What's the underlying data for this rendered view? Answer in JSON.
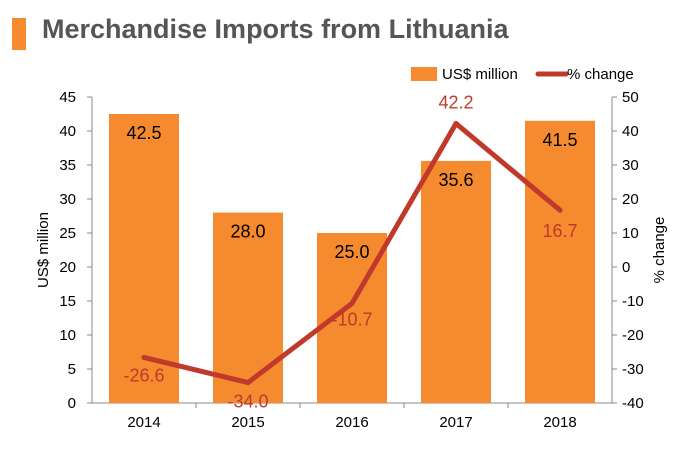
{
  "header": {
    "title": "Merchandise Imports from Lithuania"
  },
  "colors": {
    "accent": "#f58a2e",
    "bar": "#f58a2e",
    "line": "#c0392b",
    "line_label": "#c0392b",
    "axis_text": "#000000",
    "title_text": "#555555"
  },
  "chart_data": {
    "type": "bar",
    "title": "Merchandise Imports from Lithuania",
    "categories": [
      "2014",
      "2015",
      "2016",
      "2017",
      "2018"
    ],
    "series": [
      {
        "name": "US$ million",
        "type": "bar",
        "axis": "left",
        "values": [
          42.5,
          28.0,
          25.0,
          35.6,
          41.5
        ],
        "labels": [
          "42.5",
          "28.0",
          "25.0",
          "35.6",
          "41.5"
        ]
      },
      {
        "name": "% change",
        "type": "line",
        "axis": "right",
        "values": [
          -26.6,
          -34.0,
          -10.7,
          42.2,
          16.7
        ],
        "labels": [
          "-26.6",
          "-34.0",
          "-10.7",
          "42.2",
          "16.7"
        ]
      }
    ],
    "ylabel": "US$ million",
    "ylabel_right": "% change",
    "ylim": [
      0,
      45
    ],
    "ylim_right": [
      -40,
      50
    ],
    "yticks": [
      "0",
      "5",
      "10",
      "15",
      "20",
      "25",
      "30",
      "35",
      "40",
      "45"
    ],
    "yticks_right": [
      "-40",
      "-30",
      "-20",
      "-10",
      "0",
      "10",
      "20",
      "30",
      "40",
      "50"
    ],
    "legend": {
      "position": "top-right",
      "entries": [
        "US$ million",
        "% change"
      ]
    },
    "grid": false
  }
}
